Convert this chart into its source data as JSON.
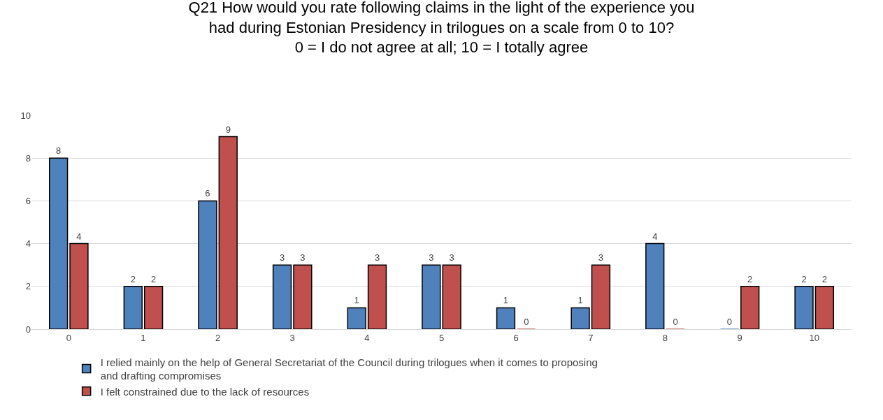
{
  "chart_data": {
    "type": "bar",
    "title": "Q21 How would you rate following claims in the light of the experience you\nhad during Estonian Presidency in trilogues on a scale from 0 to 10?\n0 = I do not agree at all; 10 = I totally agree",
    "categories": [
      "0",
      "1",
      "2",
      "3",
      "4",
      "5",
      "6",
      "7",
      "8",
      "9",
      "10"
    ],
    "series": [
      {
        "name": "I relied mainly on the help of General Secretariat of the Council during trilogues when it comes to proposing and drafting compromises",
        "color": "#4f81bd",
        "values": [
          8,
          2,
          6,
          3,
          1,
          3,
          1,
          1,
          4,
          0,
          2
        ]
      },
      {
        "name": "I felt constrained due to the lack of resources",
        "color": "#c0504d",
        "values": [
          4,
          2,
          9,
          3,
          3,
          3,
          0,
          3,
          0,
          2,
          2
        ]
      }
    ],
    "ylim": [
      0,
      10
    ],
    "yticks": [
      0,
      2,
      4,
      6,
      8,
      10
    ],
    "grid": "y",
    "legend": "bottom",
    "data_labels": true
  }
}
